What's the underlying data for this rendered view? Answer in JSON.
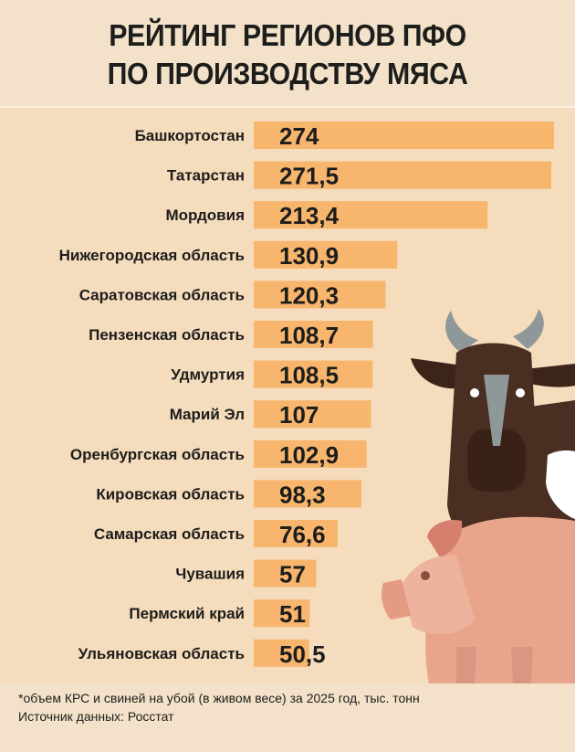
{
  "title_line1": "РЕЙТИНГ РЕГИОНОВ ПФО",
  "title_line2": "ПО ПРОИЗВОДСТВУ МЯСА",
  "footnote": "*объем КРС и свиней на убой (в живом весе) за 2025 год, тыс. тонн",
  "source": "Источник данных: Росстат",
  "colors": {
    "bar": "#f7b56d",
    "background": "#f4dcbc",
    "cow": "#4b2e22",
    "pig": "#e8a58c"
  },
  "chart_data": {
    "type": "bar",
    "orientation": "horizontal",
    "categories": [
      "Башкортостан",
      "Татарстан",
      "Мордовия",
      "Нижегородская область",
      "Саратовская область",
      "Пензенская область",
      "Удмуртия",
      "Марий Эл",
      "Оренбургская область",
      "Кировская область",
      "Самарская область",
      "Чувашия",
      "Пермский край",
      "Ульяновская область"
    ],
    "values": [
      274,
      271.5,
      213.4,
      130.9,
      120.3,
      108.7,
      108.5,
      107,
      102.9,
      98.3,
      76.6,
      57,
      51,
      50.5
    ],
    "value_labels": [
      "274",
      "271,5",
      "213,4",
      "130,9",
      "120,3",
      "108,7",
      "108,5",
      "107",
      "102,9",
      "98,3",
      "76,6",
      "57",
      "51",
      "50,5"
    ],
    "title": "РЕЙТИНГ РЕГИОНОВ ПФО ПО ПРОИЗВОДСТВУ МЯСА",
    "xlabel": "",
    "ylabel": "",
    "xlim": [
      0,
      274
    ],
    "grid": false,
    "legend": "none"
  }
}
